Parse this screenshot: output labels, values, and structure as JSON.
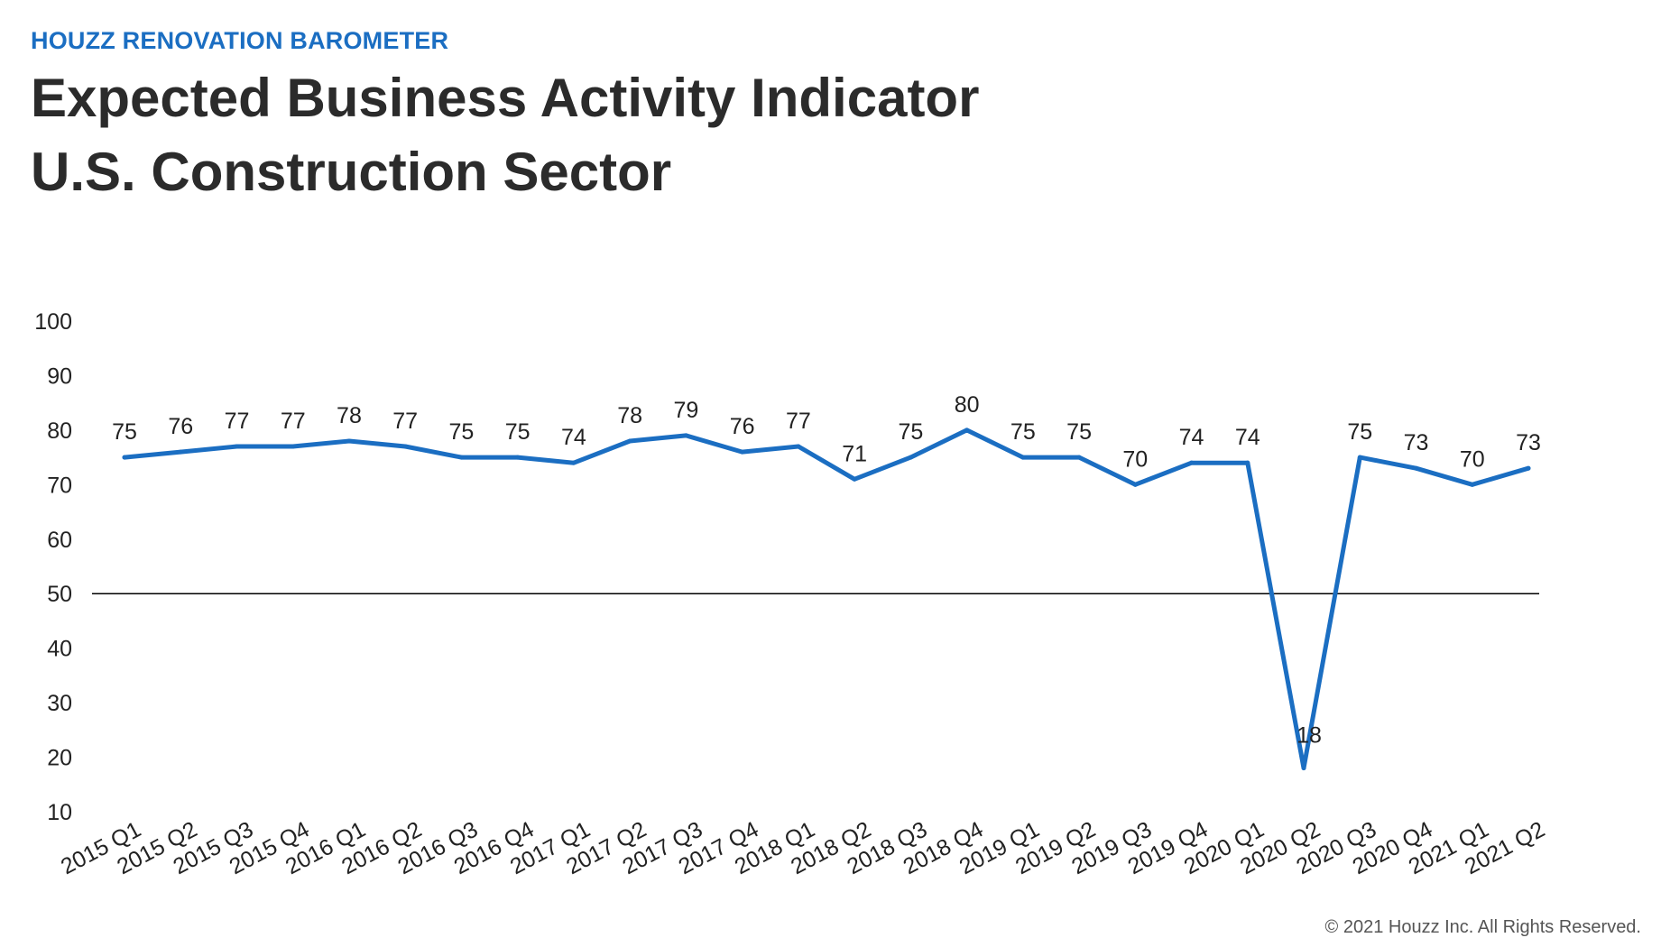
{
  "header": {
    "kicker": "HOUZZ RENOVATION BAROMETER",
    "title_line1": "Expected Business Activity Indicator",
    "title_line2": "U.S. Construction Sector"
  },
  "footer": {
    "copyright": "© 2021 Houzz Inc. All Rights Reserved."
  },
  "colors": {
    "accent": "#1B6EC2",
    "line": "#1B6EC2",
    "reference_line": "#000000",
    "text": "#222222"
  },
  "chart_data": {
    "type": "line",
    "title": "Expected Business Activity Indicator U.S. Construction Sector",
    "xlabel": "",
    "ylabel": "",
    "ylim": [
      10,
      100
    ],
    "yticks": [
      10,
      20,
      30,
      40,
      50,
      60,
      70,
      80,
      90,
      100
    ],
    "grid": false,
    "reference_line": 50,
    "categories": [
      "2015 Q1",
      "2015 Q2",
      "2015 Q3",
      "2015 Q4",
      "2016 Q1",
      "2016 Q2",
      "2016 Q3",
      "2016 Q4",
      "2017 Q1",
      "2017 Q2",
      "2017 Q3",
      "2017 Q4",
      "2018 Q1",
      "2018 Q2",
      "2018 Q3",
      "2018 Q4",
      "2019 Q1",
      "2019 Q2",
      "2019 Q3",
      "2019 Q4",
      "2020 Q1",
      "2020 Q2",
      "2020 Q3",
      "2020 Q4",
      "2021 Q1",
      "2021 Q2"
    ],
    "series": [
      {
        "values": [
          75,
          76,
          77,
          77,
          78,
          77,
          75,
          75,
          74,
          78,
          79,
          76,
          77,
          71,
          75,
          80,
          75,
          75,
          70,
          74,
          74,
          18,
          75,
          73,
          70,
          73
        ]
      }
    ]
  }
}
